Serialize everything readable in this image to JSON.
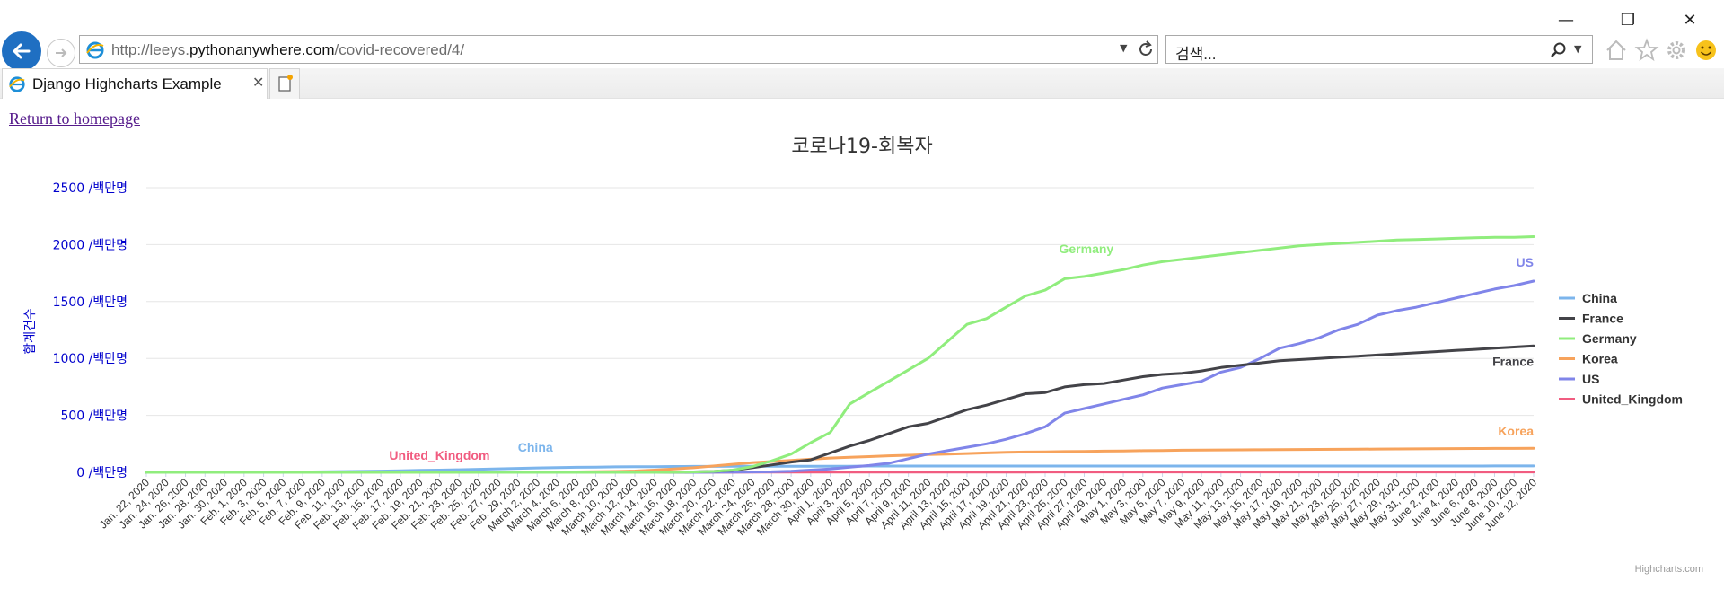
{
  "browser": {
    "url_prefix": "http://leeys.",
    "url_host": "pythonanywhere.com",
    "url_path": "/covid-recovered/4/",
    "search_placeholder": "검색...",
    "tab_title": "Django Highcharts Example"
  },
  "page": {
    "home_link": "Return to homepage"
  },
  "chart_data": {
    "type": "line",
    "title": "코로나19-회복자",
    "ylabel": "합계건수",
    "ytick_suffix": " /백만명",
    "ylim": [
      0,
      2500
    ],
    "yticks": [
      0,
      500,
      1000,
      1500,
      2000,
      2500
    ],
    "grid": true,
    "legend_position": "right",
    "credits": "Highcharts.com",
    "x_tick_labels": [
      "Jan. 22, 2020",
      "Jan. 24, 2020",
      "Jan. 26, 2020",
      "Jan. 28, 2020",
      "Jan. 30, 2020",
      "Feb. 1, 2020",
      "Feb. 3, 2020",
      "Feb. 5, 2020",
      "Feb. 7, 2020",
      "Feb. 9, 2020",
      "Feb. 11, 2020",
      "Feb. 13, 2020",
      "Feb. 15, 2020",
      "Feb. 17, 2020",
      "Feb. 19, 2020",
      "Feb. 21, 2020",
      "Feb. 23, 2020",
      "Feb. 25, 2020",
      "Feb. 27, 2020",
      "Feb. 29, 2020",
      "March 2, 2020",
      "March 4, 2020",
      "March 6, 2020",
      "March 8, 2020",
      "March 10, 2020",
      "March 12, 2020",
      "March 14, 2020",
      "March 16, 2020",
      "March 18, 2020",
      "March 20, 2020",
      "March 22, 2020",
      "March 24, 2020",
      "March 26, 2020",
      "March 28, 2020",
      "March 30, 2020",
      "April 1, 2020",
      "April 3, 2020",
      "April 5, 2020",
      "April 7, 2020",
      "April 9, 2020",
      "April 11, 2020",
      "April 13, 2020",
      "April 15, 2020",
      "April 17, 2020",
      "April 19, 2020",
      "April 21, 2020",
      "April 23, 2020",
      "April 25, 2020",
      "April 27, 2020",
      "April 29, 2020",
      "May 1, 2020",
      "May 3, 2020",
      "May 5, 2020",
      "May 7, 2020",
      "May 9, 2020",
      "May 11, 2020",
      "May 13, 2020",
      "May 15, 2020",
      "May 17, 2020",
      "May 19, 2020",
      "May 21, 2020",
      "May 23, 2020",
      "May 25, 2020",
      "May 27, 2020",
      "May 29, 2020",
      "May 31, 2020",
      "June 2, 2020",
      "June 4, 2020",
      "June 6, 2020",
      "June 8, 2020",
      "June 10, 2020",
      "June 12, 2020"
    ],
    "series": [
      {
        "name": "China",
        "color": "#7cb5ec",
        "label": "China",
        "values": [
          0,
          0,
          0,
          0,
          0,
          1,
          1,
          2,
          3,
          5,
          7,
          9,
          11,
          14,
          17,
          20,
          23,
          27,
          31,
          35,
          39,
          42,
          44,
          46,
          48,
          49,
          50,
          51,
          52,
          52,
          53,
          53,
          54,
          54,
          54,
          54,
          54,
          55,
          55,
          55,
          55,
          55,
          55,
          55,
          55,
          55,
          55,
          55,
          55,
          55,
          55,
          55,
          55,
          55,
          55,
          55,
          55,
          55,
          55,
          55,
          55,
          55,
          55,
          55,
          55,
          55,
          55,
          55,
          55,
          56,
          56,
          56
        ]
      },
      {
        "name": "France",
        "color": "#434348",
        "label": "France",
        "values": [
          0,
          0,
          0,
          0,
          0,
          0,
          0,
          0,
          0,
          0,
          0,
          0,
          0,
          0,
          0,
          0,
          0,
          0,
          0,
          0,
          0,
          0,
          0,
          0,
          0,
          0,
          0,
          1,
          4,
          8,
          18,
          40,
          65,
          90,
          110,
          170,
          230,
          280,
          340,
          400,
          430,
          490,
          550,
          590,
          640,
          690,
          700,
          750,
          770,
          780,
          810,
          840,
          860,
          870,
          890,
          920,
          940,
          960,
          980,
          990,
          1000,
          1010,
          1020,
          1030,
          1040,
          1050,
          1060,
          1070,
          1080,
          1090,
          1100,
          1110
        ]
      },
      {
        "name": "Germany",
        "color": "#90ed7d",
        "label": "Germany",
        "values": [
          0,
          0,
          0,
          0,
          0,
          0,
          0,
          0,
          0,
          0,
          0,
          0,
          0,
          0,
          0,
          0,
          0,
          0,
          0,
          0,
          0,
          0,
          0,
          0,
          0,
          0,
          0,
          1,
          3,
          8,
          20,
          50,
          100,
          160,
          260,
          350,
          600,
          700,
          800,
          900,
          1000,
          1150,
          1300,
          1350,
          1450,
          1550,
          1600,
          1700,
          1720,
          1750,
          1780,
          1820,
          1850,
          1870,
          1890,
          1910,
          1930,
          1950,
          1970,
          1990,
          2000,
          2010,
          2020,
          2030,
          2040,
          2045,
          2050,
          2055,
          2060,
          2065,
          2065,
          2070
        ]
      },
      {
        "name": "Korea",
        "color": "#f7a35c",
        "label": "Korea",
        "values": [
          0,
          0,
          0,
          0,
          0,
          0,
          0,
          0,
          0,
          0,
          0,
          0,
          0,
          0,
          0,
          0,
          0,
          0,
          0,
          1,
          2,
          3,
          4,
          6,
          8,
          12,
          20,
          30,
          40,
          55,
          70,
          85,
          95,
          105,
          115,
          125,
          132,
          138,
          145,
          150,
          155,
          160,
          165,
          170,
          175,
          178,
          180,
          182,
          184,
          186,
          188,
          190,
          192,
          194,
          195,
          196,
          197,
          198,
          199,
          200,
          201,
          202,
          203,
          204,
          205,
          206,
          207,
          208,
          209,
          210,
          210,
          211
        ]
      },
      {
        "name": "US",
        "color": "#8085e9",
        "label": "US",
        "values": [
          0,
          0,
          0,
          0,
          0,
          0,
          0,
          0,
          0,
          0,
          0,
          0,
          0,
          0,
          0,
          0,
          0,
          0,
          0,
          0,
          0,
          0,
          0,
          0,
          0,
          0,
          0,
          0,
          0,
          1,
          2,
          3,
          5,
          10,
          20,
          30,
          45,
          60,
          80,
          120,
          160,
          190,
          220,
          250,
          290,
          340,
          400,
          520,
          560,
          600,
          640,
          680,
          740,
          770,
          800,
          880,
          920,
          1000,
          1090,
          1130,
          1180,
          1250,
          1300,
          1380,
          1420,
          1450,
          1490,
          1530,
          1570,
          1610,
          1640,
          1680
        ]
      },
      {
        "name": "United_Kingdom",
        "color": "#f15c80",
        "label": "United_Kingdom",
        "values": [
          0,
          0,
          0,
          0,
          0,
          0,
          0,
          0,
          0,
          0,
          0,
          0,
          0,
          0,
          0,
          0,
          0,
          0,
          0,
          0,
          0,
          0,
          0,
          0,
          0,
          0,
          0,
          1,
          1,
          1,
          1,
          2,
          2,
          2,
          2,
          2,
          2,
          2,
          2,
          2,
          2,
          2,
          2,
          2,
          2,
          2,
          3,
          3,
          3,
          3,
          3,
          3,
          3,
          3,
          3,
          3,
          3,
          3,
          3,
          3,
          3,
          3,
          3,
          3,
          3,
          3,
          3,
          3,
          3,
          3,
          3,
          3
        ]
      }
    ]
  }
}
